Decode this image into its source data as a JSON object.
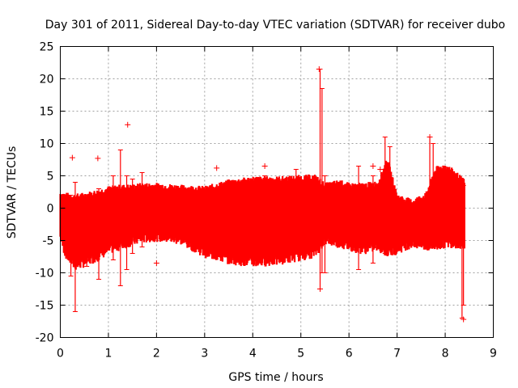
{
  "chart_data": {
    "type": "scatter",
    "title": "Day 301 of 2011, Sidereal Day-to-day VTEC variation (SDTVAR) for receiver dubo",
    "xlabel": "GPS time / hours",
    "ylabel": "SDTVAR / TECUs",
    "xlim": [
      0,
      9
    ],
    "ylim": [
      -20,
      25
    ],
    "xticks": [
      "0",
      "1",
      "2",
      "3",
      "4",
      "5",
      "6",
      "7",
      "8",
      "9"
    ],
    "yticks": [
      "-20",
      "-15",
      "-10",
      "-5",
      "0",
      "5",
      "10",
      "15",
      "20",
      "25"
    ],
    "grid": true,
    "series_color": "#ff0000",
    "envelope": {
      "x": [
        0.0,
        0.1,
        0.3,
        0.5,
        0.8,
        1.0,
        1.2,
        1.5,
        1.7,
        2.0,
        2.5,
        3.0,
        3.5,
        4.0,
        4.5,
        5.0,
        5.3,
        5.5,
        5.8,
        6.0,
        6.3,
        6.6,
        6.8,
        7.0,
        7.3,
        7.6,
        7.8,
        8.0,
        8.2,
        8.4
      ],
      "upper": [
        2.2,
        2.0,
        1.8,
        2.0,
        2.5,
        3.0,
        3.2,
        3.3,
        3.5,
        3.5,
        3.2,
        3.0,
        4.0,
        4.5,
        4.5,
        4.7,
        4.8,
        3.5,
        4.0,
        3.5,
        3.5,
        3.8,
        7.5,
        1.8,
        1.0,
        2.0,
        6.0,
        6.5,
        5.5,
        4.0
      ],
      "lower": [
        -4.5,
        -7.0,
        -9.0,
        -8.5,
        -7.5,
        -6.5,
        -6.0,
        -5.2,
        -4.8,
        -4.5,
        -5.0,
        -7.0,
        -8.0,
        -8.5,
        -8.2,
        -7.5,
        -7.0,
        -5.0,
        -5.5,
        -6.0,
        -6.5,
        -6.0,
        -7.0,
        -6.5,
        -5.5,
        -6.0,
        -6.0,
        -5.5,
        -5.5,
        -5.8
      ]
    },
    "spikes": [
      {
        "x": 0.22,
        "high": 2.0,
        "low": -10.5
      },
      {
        "x": 0.31,
        "high": 4.0,
        "low": -16.0
      },
      {
        "x": 0.55,
        "high": 2.0,
        "low": -9.0
      },
      {
        "x": 0.8,
        "high": 3.0,
        "low": -11.0
      },
      {
        "x": 1.1,
        "high": 5.0,
        "low": -8.0
      },
      {
        "x": 1.25,
        "high": 9.0,
        "low": -12.0
      },
      {
        "x": 1.38,
        "high": 5.0,
        "low": -9.5
      },
      {
        "x": 1.5,
        "high": 4.5,
        "low": -7.0
      },
      {
        "x": 1.7,
        "high": 5.5,
        "low": -6.0
      },
      {
        "x": 4.25,
        "high": 5.0,
        "low": -7.0
      },
      {
        "x": 4.9,
        "high": 6.0,
        "low": -7.0
      },
      {
        "x": 5.4,
        "high": 21.5,
        "low": -12.5
      },
      {
        "x": 5.44,
        "high": 18.5,
        "low": -10.0
      },
      {
        "x": 5.5,
        "high": 5.0,
        "low": -10.0
      },
      {
        "x": 6.2,
        "high": 6.5,
        "low": -9.5
      },
      {
        "x": 6.5,
        "high": 5.0,
        "low": -8.5
      },
      {
        "x": 6.75,
        "high": 11.0,
        "low": -7.0
      },
      {
        "x": 6.85,
        "high": 9.5,
        "low": -6.0
      },
      {
        "x": 7.68,
        "high": 11.0,
        "low": -5.0
      },
      {
        "x": 7.75,
        "high": 10.0,
        "low": -5.5
      },
      {
        "x": 8.35,
        "high": 4.5,
        "low": -17.0
      },
      {
        "x": 8.38,
        "high": 3.5,
        "low": -15.0
      }
    ],
    "outliers": [
      {
        "x": 0.25,
        "y": 7.8
      },
      {
        "x": 0.78,
        "y": 7.7
      },
      {
        "x": 1.4,
        "y": 12.9
      },
      {
        "x": 2.0,
        "y": -8.5
      },
      {
        "x": 3.25,
        "y": 6.2
      },
      {
        "x": 4.25,
        "y": 6.5
      },
      {
        "x": 5.38,
        "y": 21.5
      },
      {
        "x": 5.4,
        "y": -12.5
      },
      {
        "x": 6.5,
        "y": 6.5
      },
      {
        "x": 6.65,
        "y": 6.0
      },
      {
        "x": 7.68,
        "y": 11.0
      },
      {
        "x": 8.3,
        "y": 4.6
      },
      {
        "x": 8.38,
        "y": -17.2
      }
    ]
  }
}
